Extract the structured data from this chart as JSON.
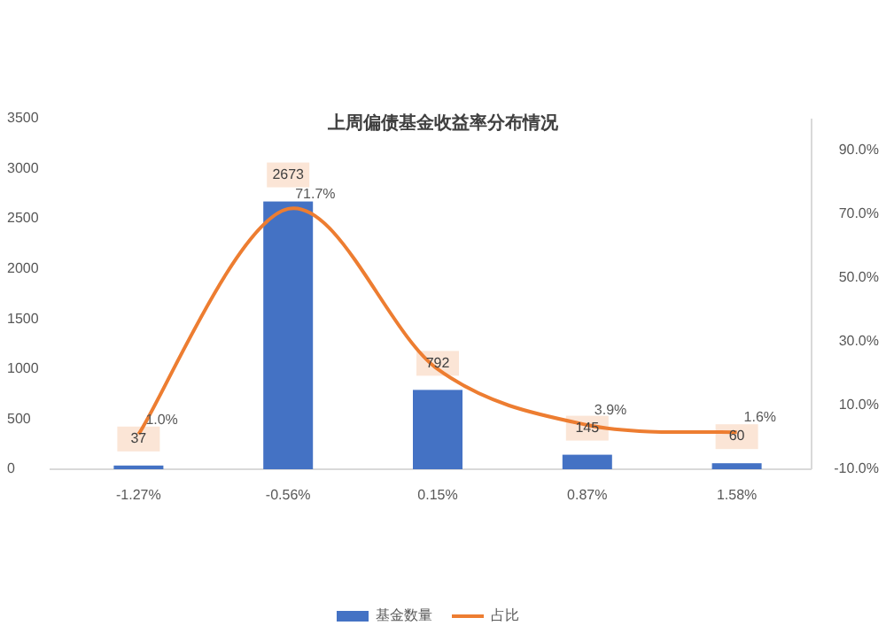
{
  "chart_data": {
    "type": "bar",
    "title": "上周偏债基金收益率分布情况",
    "categories": [
      "-1.27%",
      "-0.56%",
      "0.15%",
      "0.87%",
      "1.58%"
    ],
    "series": [
      {
        "name": "基金数量",
        "type": "bar",
        "color": "#4472c4",
        "values": [
          37,
          2673,
          792,
          145,
          60
        ],
        "value_labels": [
          "37",
          "2673",
          "792",
          "145",
          "60"
        ]
      },
      {
        "name": "占比",
        "type": "line",
        "axis": "y2",
        "color": "#ed7d31",
        "values": [
          1.0,
          71.7,
          21.4,
          3.9,
          1.6
        ],
        "value_labels": [
          "1.0%",
          "71.7%",
          null,
          "3.9%",
          "1.6%"
        ]
      }
    ],
    "ylim": [
      0,
      3500
    ],
    "yticks": [
      0,
      500,
      1000,
      1500,
      2000,
      2500,
      3000,
      3500
    ],
    "y2lim": [
      -10,
      100
    ],
    "y2ticks": [
      {
        "value": -10,
        "label": "-10.0%"
      },
      {
        "value": 10,
        "label": "10.0%"
      },
      {
        "value": 30,
        "label": "30.0%"
      },
      {
        "value": 50,
        "label": "50.0%"
      },
      {
        "value": 70,
        "label": "70.0%"
      },
      {
        "value": 90,
        "label": "90.0%"
      }
    ],
    "legend": "bottom",
    "grid": false,
    "marker": "none"
  }
}
